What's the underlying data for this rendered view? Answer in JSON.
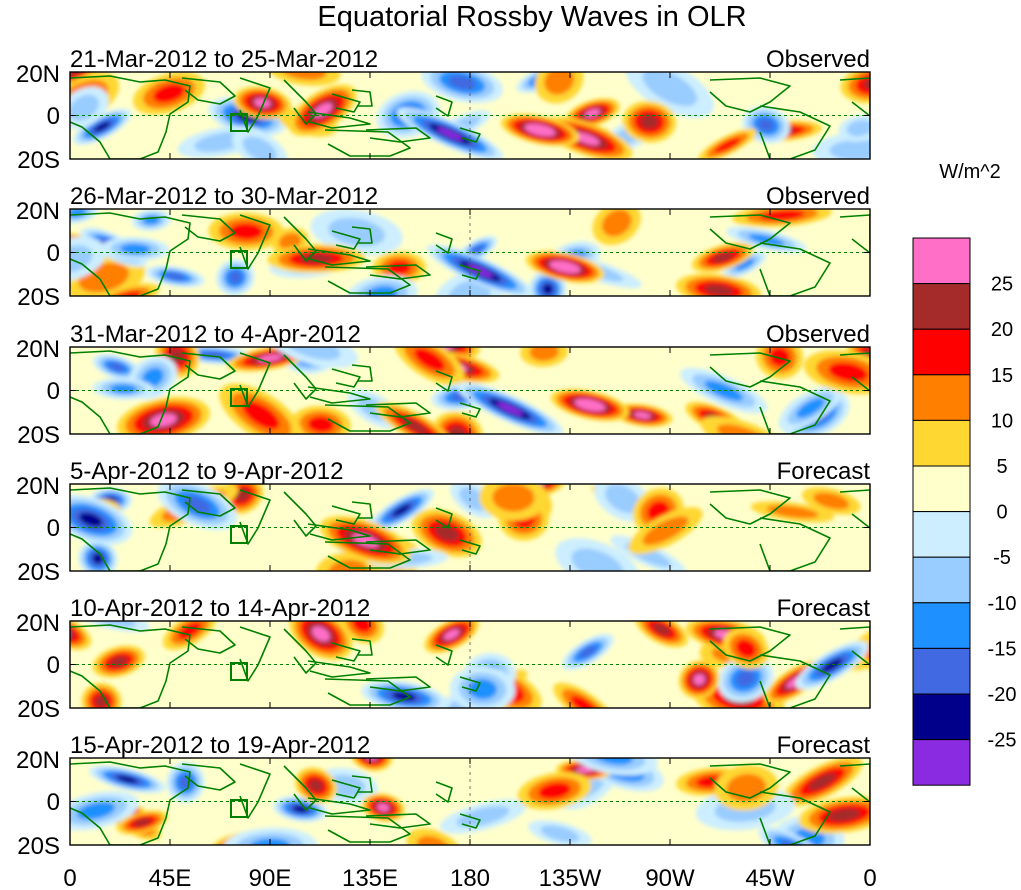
{
  "title": "Equatorial Rossby Waves in OLR",
  "colorbar": {
    "units": "W/m^2",
    "levels": [
      "25",
      "20",
      "15",
      "10",
      "5",
      "0",
      "-5",
      "-10",
      "-15",
      "-20",
      "-25"
    ],
    "colors": [
      "#ff6ec7",
      "#a52a2a",
      "#ff0000",
      "#ff7f00",
      "#ffd733",
      "#ffffcc",
      "#cceeff",
      "#99ccff",
      "#1e90ff",
      "#4169e1",
      "#00008b",
      "#8a2be2"
    ]
  },
  "x_ticks": [
    "0",
    "45E",
    "90E",
    "135E",
    "180",
    "135W",
    "90W",
    "45W",
    "0"
  ],
  "y_ticks": [
    "20N",
    "0",
    "20S"
  ],
  "colors": {
    "land": "#008000",
    "frame": "#000000",
    "equator": "#008000"
  },
  "panels": [
    {
      "dates": "21-Mar-2012 to 25-Mar-2012",
      "status": "Observed"
    },
    {
      "dates": "26-Mar-2012 to 30-Mar-2012",
      "status": "Observed"
    },
    {
      "dates": "31-Mar-2012 to 4-Apr-2012",
      "status": "Observed"
    },
    {
      "dates": "5-Apr-2012 to 9-Apr-2012",
      "status": "Forecast"
    },
    {
      "dates": "10-Apr-2012 to 14-Apr-2012",
      "status": "Forecast"
    },
    {
      "dates": "15-Apr-2012 to 19-Apr-2012",
      "status": "Forecast"
    }
  ]
}
